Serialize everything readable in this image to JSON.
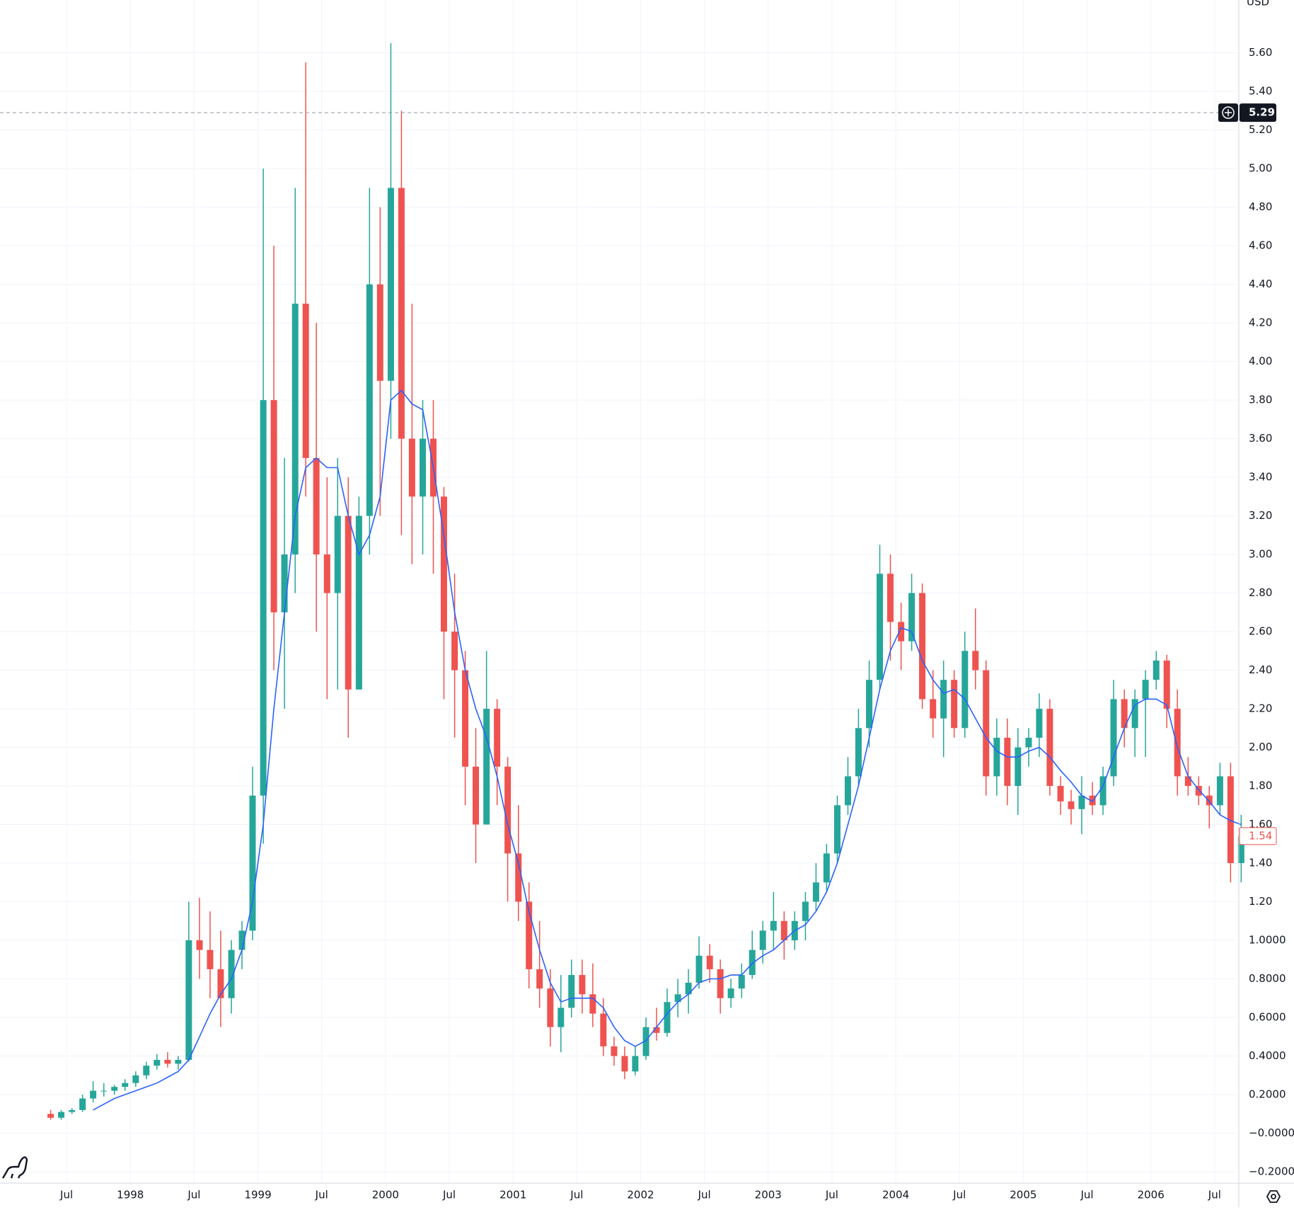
{
  "chart_data": {
    "type": "candlestick",
    "currency": "USD",
    "up_color": "#26a69a",
    "down_color": "#ef5350",
    "ma_color": "#2962ff",
    "grid": true,
    "xlim": [
      1996.978,
      2006.684
    ],
    "ylim": [
      -0.255,
      5.874
    ],
    "xticks": [
      {
        "value": 1997.5,
        "label": "Jul"
      },
      1998,
      {
        "value": 1998.5,
        "label": "Jul"
      },
      1999,
      {
        "value": 1999.5,
        "label": "Jul"
      },
      2000,
      {
        "value": 2000.5,
        "label": "Jul"
      },
      2001,
      {
        "value": 2001.5,
        "label": "Jul"
      },
      2002,
      {
        "value": 2002.5,
        "label": "Jul"
      },
      2003,
      {
        "value": 2003.5,
        "label": "Jul"
      },
      2004,
      {
        "value": 2004.5,
        "label": "Jul"
      },
      2005,
      {
        "value": 2005.5,
        "label": "Jul"
      },
      2006,
      {
        "value": 2006.5,
        "label": "Jul"
      }
    ],
    "yticks": [
      {
        "value": 5.6,
        "label": "5.60"
      },
      {
        "value": 5.4,
        "label": "5.40"
      },
      {
        "value": 5.2,
        "label": "5.20"
      },
      {
        "value": 5,
        "label": "5.00"
      },
      {
        "value": 4.8,
        "label": "4.80"
      },
      {
        "value": 4.6,
        "label": "4.60"
      },
      {
        "value": 4.4,
        "label": "4.40"
      },
      {
        "value": 4.2,
        "label": "4.20"
      },
      {
        "value": 4,
        "label": "4.00"
      },
      {
        "value": 3.8,
        "label": "3.80"
      },
      {
        "value": 3.6,
        "label": "3.60"
      },
      {
        "value": 3.4,
        "label": "3.40"
      },
      {
        "value": 3.2,
        "label": "3.20"
      },
      {
        "value": 3,
        "label": "3.00"
      },
      {
        "value": 2.8,
        "label": "2.80"
      },
      {
        "value": 2.6,
        "label": "2.60"
      },
      {
        "value": 2.4,
        "label": "2.40"
      },
      {
        "value": 2.2,
        "label": "2.20"
      },
      {
        "value": 2,
        "label": "2.00"
      },
      {
        "value": 1.8,
        "label": "1.80"
      },
      {
        "value": 1.6,
        "label": "1.60"
      },
      {
        "value": 1.4,
        "label": "1.40"
      },
      {
        "value": 1.2,
        "label": "1.20"
      },
      {
        "value": 1,
        "label": "1.0000"
      },
      {
        "value": 0.8,
        "label": "0.8000"
      },
      {
        "value": 0.6,
        "label": "0.6000"
      },
      {
        "value": 0.4,
        "label": "0.4000"
      },
      {
        "value": 0.2,
        "label": "0.2000"
      },
      {
        "value": 0,
        "label": "−0.0000"
      },
      {
        "value": -0.2,
        "label": "−0.2000"
      }
    ],
    "crosshair_price": 5.29,
    "last_price": 1.54,
    "x": [
      1997.375,
      1997.458,
      1997.542,
      1997.625,
      1997.708,
      1997.792,
      1997.875,
      1997.958,
      1998.042,
      1998.125,
      1998.208,
      1998.292,
      1998.375,
      1998.458,
      1998.542,
      1998.625,
      1998.708,
      1998.792,
      1998.875,
      1998.958,
      1999.042,
      1999.125,
      1999.208,
      1999.292,
      1999.375,
      1999.458,
      1999.542,
      1999.625,
      1999.708,
      1999.792,
      1999.875,
      1999.958,
      2000.042,
      2000.125,
      2000.208,
      2000.292,
      2000.375,
      2000.458,
      2000.542,
      2000.625,
      2000.708,
      2000.792,
      2000.875,
      2000.958,
      2001.042,
      2001.125,
      2001.208,
      2001.292,
      2001.375,
      2001.458,
      2001.542,
      2001.625,
      2001.708,
      2001.792,
      2001.875,
      2001.958,
      2002.042,
      2002.125,
      2002.208,
      2002.292,
      2002.375,
      2002.458,
      2002.542,
      2002.625,
      2002.708,
      2002.792,
      2002.875,
      2002.958,
      2003.042,
      2003.125,
      2003.208,
      2003.292,
      2003.375,
      2003.458,
      2003.542,
      2003.625,
      2003.708,
      2003.792,
      2003.875,
      2003.958,
      2004.042,
      2004.125,
      2004.208,
      2004.292,
      2004.375,
      2004.458,
      2004.542,
      2004.625,
      2004.708,
      2004.792,
      2004.875,
      2004.958,
      2005.042,
      2005.125,
      2005.208,
      2005.292,
      2005.375,
      2005.458,
      2005.542,
      2005.625,
      2005.708,
      2005.792,
      2005.875,
      2005.958,
      2006.042,
      2006.125,
      2006.208,
      2006.292,
      2006.375,
      2006.458,
      2006.542,
      2006.625,
      2006.708
    ],
    "ohlc": [
      [
        0.1,
        0.12,
        0.07,
        0.08
      ],
      [
        0.08,
        0.12,
        0.07,
        0.11
      ],
      [
        0.11,
        0.13,
        0.1,
        0.12
      ],
      [
        0.12,
        0.2,
        0.11,
        0.18
      ],
      [
        0.18,
        0.27,
        0.16,
        0.22
      ],
      [
        0.22,
        0.26,
        0.19,
        0.22
      ],
      [
        0.22,
        0.25,
        0.2,
        0.24
      ],
      [
        0.24,
        0.28,
        0.22,
        0.26
      ],
      [
        0.26,
        0.32,
        0.24,
        0.3
      ],
      [
        0.3,
        0.37,
        0.28,
        0.35
      ],
      [
        0.35,
        0.41,
        0.33,
        0.38
      ],
      [
        0.38,
        0.42,
        0.34,
        0.36
      ],
      [
        0.36,
        0.4,
        0.33,
        0.38
      ],
      [
        0.38,
        1.2,
        0.37,
        1.0
      ],
      [
        1.0,
        1.22,
        0.8,
        0.95
      ],
      [
        0.95,
        1.15,
        0.7,
        0.85
      ],
      [
        0.85,
        1.05,
        0.55,
        0.7
      ],
      [
        0.7,
        1.0,
        0.62,
        0.95
      ],
      [
        0.95,
        1.1,
        0.85,
        1.05
      ],
      [
        1.05,
        1.9,
        1.0,
        1.75
      ],
      [
        1.75,
        5.0,
        1.5,
        3.8
      ],
      [
        3.8,
        4.6,
        2.4,
        2.7
      ],
      [
        2.7,
        3.5,
        2.2,
        3.0
      ],
      [
        3.0,
        4.9,
        2.8,
        4.3
      ],
      [
        4.3,
        5.55,
        3.3,
        3.5
      ],
      [
        3.5,
        4.2,
        2.6,
        3.0
      ],
      [
        3.0,
        3.4,
        2.25,
        2.8
      ],
      [
        2.8,
        3.5,
        2.3,
        3.2
      ],
      [
        3.2,
        3.4,
        2.05,
        2.3
      ],
      [
        2.3,
        3.3,
        2.3,
        3.2
      ],
      [
        3.2,
        4.9,
        3.0,
        4.4
      ],
      [
        4.4,
        4.8,
        3.2,
        3.9
      ],
      [
        3.9,
        5.65,
        3.6,
        4.9
      ],
      [
        4.9,
        5.3,
        3.1,
        3.6
      ],
      [
        3.6,
        4.3,
        2.95,
        3.3
      ],
      [
        3.3,
        3.8,
        3.0,
        3.6
      ],
      [
        3.6,
        3.8,
        2.9,
        3.3
      ],
      [
        3.3,
        3.35,
        2.25,
        2.6
      ],
      [
        2.6,
        2.9,
        2.05,
        2.4
      ],
      [
        2.4,
        2.5,
        1.7,
        1.9
      ],
      [
        1.9,
        2.1,
        1.4,
        1.6
      ],
      [
        1.6,
        2.5,
        1.6,
        2.2
      ],
      [
        2.2,
        2.25,
        1.7,
        1.9
      ],
      [
        1.9,
        1.95,
        1.2,
        1.45
      ],
      [
        1.45,
        1.7,
        1.1,
        1.2
      ],
      [
        1.2,
        1.3,
        0.75,
        0.85
      ],
      [
        0.85,
        1.1,
        0.65,
        0.75
      ],
      [
        0.75,
        0.85,
        0.45,
        0.55
      ],
      [
        0.55,
        0.82,
        0.42,
        0.65
      ],
      [
        0.65,
        0.9,
        0.6,
        0.82
      ],
      [
        0.82,
        0.9,
        0.62,
        0.72
      ],
      [
        0.72,
        0.88,
        0.55,
        0.62
      ],
      [
        0.62,
        0.7,
        0.4,
        0.45
      ],
      [
        0.45,
        0.5,
        0.35,
        0.4
      ],
      [
        0.4,
        0.45,
        0.28,
        0.32
      ],
      [
        0.32,
        0.45,
        0.3,
        0.4
      ],
      [
        0.4,
        0.6,
        0.38,
        0.55
      ],
      [
        0.55,
        0.65,
        0.48,
        0.52
      ],
      [
        0.52,
        0.75,
        0.5,
        0.68
      ],
      [
        0.68,
        0.8,
        0.6,
        0.72
      ],
      [
        0.72,
        0.85,
        0.62,
        0.78
      ],
      [
        0.78,
        1.02,
        0.75,
        0.92
      ],
      [
        0.92,
        0.98,
        0.78,
        0.85
      ],
      [
        0.85,
        0.9,
        0.62,
        0.7
      ],
      [
        0.7,
        0.8,
        0.65,
        0.75
      ],
      [
        0.75,
        0.88,
        0.7,
        0.82
      ],
      [
        0.82,
        1.05,
        0.8,
        0.95
      ],
      [
        0.95,
        1.1,
        0.88,
        1.05
      ],
      [
        1.05,
        1.25,
        0.95,
        1.1
      ],
      [
        1.1,
        1.15,
        0.9,
        1.0
      ],
      [
        1.0,
        1.15,
        0.95,
        1.1
      ],
      [
        1.1,
        1.25,
        1.0,
        1.2
      ],
      [
        1.2,
        1.4,
        1.15,
        1.3
      ],
      [
        1.3,
        1.5,
        1.25,
        1.45
      ],
      [
        1.45,
        1.75,
        1.4,
        1.7
      ],
      [
        1.7,
        1.95,
        1.65,
        1.85
      ],
      [
        1.85,
        2.2,
        1.8,
        2.1
      ],
      [
        2.1,
        2.45,
        2.0,
        2.35
      ],
      [
        2.35,
        3.05,
        2.3,
        2.9
      ],
      [
        2.9,
        3.0,
        2.45,
        2.65
      ],
      [
        2.65,
        2.75,
        2.4,
        2.55
      ],
      [
        2.55,
        2.9,
        2.5,
        2.8
      ],
      [
        2.8,
        2.85,
        2.2,
        2.25
      ],
      [
        2.25,
        2.4,
        2.05,
        2.15
      ],
      [
        2.15,
        2.45,
        1.95,
        2.35
      ],
      [
        2.35,
        2.4,
        2.05,
        2.1
      ],
      [
        2.1,
        2.6,
        2.05,
        2.5
      ],
      [
        2.5,
        2.72,
        2.3,
        2.4
      ],
      [
        2.4,
        2.45,
        1.75,
        1.85
      ],
      [
        1.85,
        2.15,
        1.75,
        2.05
      ],
      [
        2.05,
        2.15,
        1.7,
        1.8
      ],
      [
        1.8,
        2.1,
        1.65,
        2.0
      ],
      [
        2.0,
        2.1,
        1.9,
        2.05
      ],
      [
        2.05,
        2.28,
        1.95,
        2.2
      ],
      [
        2.2,
        2.25,
        1.75,
        1.8
      ],
      [
        1.8,
        1.85,
        1.65,
        1.72
      ],
      [
        1.72,
        1.78,
        1.6,
        1.68
      ],
      [
        1.68,
        1.85,
        1.55,
        1.75
      ],
      [
        1.75,
        1.82,
        1.65,
        1.7
      ],
      [
        1.7,
        1.9,
        1.65,
        1.85
      ],
      [
        1.85,
        2.35,
        1.8,
        2.25
      ],
      [
        2.25,
        2.3,
        2.0,
        2.1
      ],
      [
        2.1,
        2.3,
        1.95,
        2.25
      ],
      [
        2.25,
        2.4,
        1.95,
        2.35
      ],
      [
        2.35,
        2.5,
        2.3,
        2.45
      ],
      [
        2.45,
        2.48,
        2.1,
        2.2
      ],
      [
        2.2,
        2.3,
        1.75,
        1.85
      ],
      [
        1.85,
        1.95,
        1.75,
        1.8
      ],
      [
        1.8,
        1.85,
        1.7,
        1.75
      ],
      [
        1.75,
        1.8,
        1.58,
        1.7
      ],
      [
        1.7,
        1.92,
        1.65,
        1.85
      ],
      [
        1.85,
        1.92,
        1.3,
        1.4
      ],
      [
        1.4,
        1.65,
        1.3,
        1.54
      ]
    ],
    "moving_average": [
      null,
      null,
      null,
      null,
      0.12,
      0.15,
      0.18,
      0.2,
      0.22,
      0.24,
      0.26,
      0.29,
      0.32,
      0.38,
      0.5,
      0.62,
      0.72,
      0.8,
      0.95,
      1.2,
      1.6,
      2.2,
      2.7,
      3.2,
      3.45,
      3.5,
      3.45,
      3.45,
      3.2,
      3.0,
      3.1,
      3.3,
      3.8,
      3.85,
      3.78,
      3.75,
      3.45,
      3.1,
      2.7,
      2.4,
      2.2,
      2.05,
      1.85,
      1.6,
      1.4,
      1.15,
      0.95,
      0.78,
      0.68,
      0.7,
      0.7,
      0.7,
      0.65,
      0.55,
      0.48,
      0.45,
      0.48,
      0.55,
      0.62,
      0.68,
      0.72,
      0.78,
      0.8,
      0.8,
      0.82,
      0.82,
      0.88,
      0.92,
      0.95,
      1.0,
      1.05,
      1.08,
      1.15,
      1.25,
      1.4,
      1.6,
      1.8,
      2.05,
      2.3,
      2.5,
      2.62,
      2.6,
      2.45,
      2.35,
      2.28,
      2.3,
      2.25,
      2.15,
      2.05,
      1.98,
      1.95,
      1.95,
      1.98,
      2.0,
      1.95,
      1.88,
      1.82,
      1.75,
      1.72,
      1.8,
      1.95,
      2.1,
      2.22,
      2.25,
      2.25,
      2.22,
      2.0,
      1.85,
      1.78,
      1.72,
      1.65,
      1.62,
      1.6
    ]
  }
}
